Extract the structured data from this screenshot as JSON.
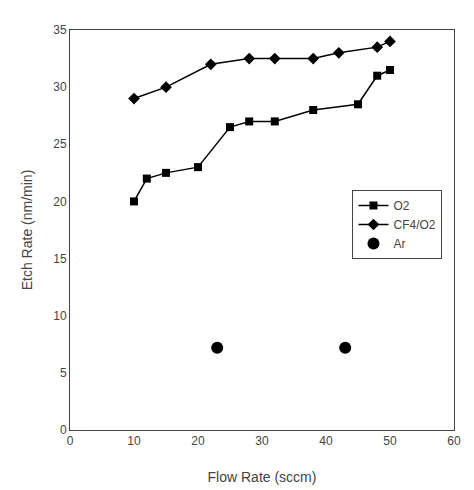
{
  "chart_data": {
    "type": "line",
    "xlabel": "Flow Rate (sccm)",
    "ylabel": "Etch Rate (nm/min)",
    "series": [
      {
        "name": "O2",
        "color": "#000000",
        "marker": "square",
        "line_style": "solid",
        "x": [
          10,
          12,
          15,
          20,
          25,
          28,
          32,
          38,
          45,
          48,
          50
        ],
        "values": [
          20.0,
          22.0,
          22.5,
          23.0,
          26.5,
          27.0,
          27.0,
          28.0,
          28.5,
          31.0,
          31.5
        ]
      },
      {
        "name": "CF4/O2",
        "color": "#000000",
        "marker": "diamond",
        "line_style": "solid",
        "x": [
          10,
          15,
          22,
          28,
          32,
          38,
          42,
          48,
          50
        ],
        "values": [
          29.0,
          30.0,
          32.0,
          32.5,
          32.5,
          32.5,
          33.0,
          33.5,
          34.0
        ]
      },
      {
        "name": "Ar",
        "color": "#000000",
        "marker": "circle",
        "line_style": "none",
        "x": [
          23,
          43
        ],
        "values": [
          7.2,
          7.2
        ]
      }
    ],
    "xlim": [
      0,
      60
    ],
    "ylim": [
      0,
      35
    ],
    "xticks": [
      0,
      10,
      20,
      30,
      40,
      50,
      60
    ],
    "yticks": [
      0,
      5,
      10,
      15,
      20,
      25,
      30,
      35
    ],
    "grid": false,
    "legend": "right"
  }
}
